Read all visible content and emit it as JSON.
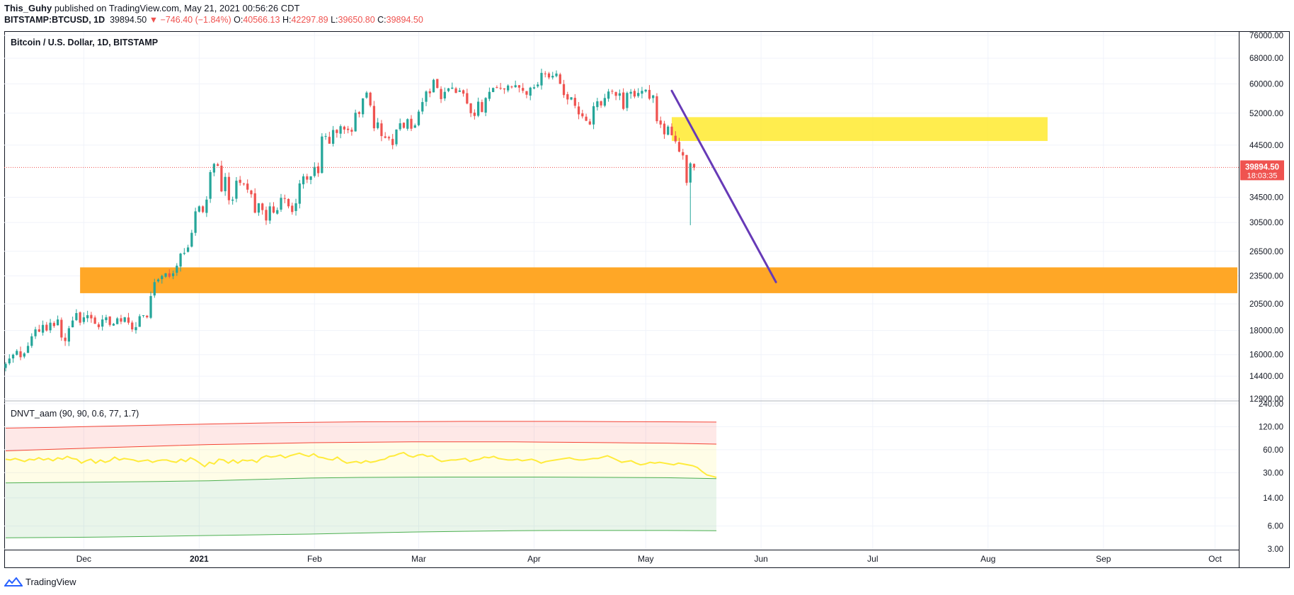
{
  "header": {
    "author": "This_Guhy",
    "published": "published on TradingView.com, May 21, 2021 00:56:26 CDT",
    "symbol": "BITSTAMP:BTCUSD, 1D",
    "last": "39894.50",
    "change": "▼ −746.40 (−1.84%)",
    "o_label": "O:",
    "o_val": "40566.13",
    "h_label": "H:",
    "h_val": "42297.89",
    "l_label": "L:",
    "l_val": "39650.80",
    "c_label": "C:",
    "c_val": "39894.50"
  },
  "footer": {
    "brand": "TradingView"
  },
  "colors": {
    "up": "#26a69a",
    "down": "#ef5350",
    "yellow_zone": "#ffeb3b",
    "orange_zone": "#ffa726",
    "trendline": "#673ab7",
    "indicator_line": "#ffeb3b"
  },
  "chart_data": [
    {
      "type": "candlestick",
      "title": "Bitcoin / U.S. Dollar, 1D, BITSTAMP",
      "scale": "log",
      "ylim": [
        12900,
        76000
      ],
      "y_ticks": [
        "76000.00",
        "68000.00",
        "60000.00",
        "52000.00",
        "44500.00",
        "39894.50",
        "34500.00",
        "30500.00",
        "26500.00",
        "23500.00",
        "20500.00",
        "18000.00",
        "16000.00",
        "14400.00",
        "12900.00"
      ],
      "price_ticks": [
        76000,
        68000,
        60000,
        52000,
        44500,
        34500,
        30500,
        26500,
        23500,
        20500,
        18000,
        16000,
        14400,
        12900
      ],
      "last_price": 39894.5,
      "last_price_label": "39894.50",
      "countdown": "18:03:35",
      "x_ticks": [
        "Dec",
        "2021",
        "Feb",
        "Mar",
        "Apr",
        "May",
        "Jun",
        "Jul",
        "Aug",
        "Sep",
        "Oct"
      ],
      "x_tick_dates": [
        "2020-12-01",
        "2021-01-01",
        "2021-02-01",
        "2021-03-01",
        "2021-04-01",
        "2021-05-01",
        "2021-06-01",
        "2021-07-01",
        "2021-08-01",
        "2021-09-01",
        "2021-10-01"
      ],
      "x_range": [
        "2020-11-10",
        "2021-10-07"
      ],
      "candles_first_date": "2020-11-10",
      "close_path": [
        15300,
        15700,
        16000,
        16300,
        15800,
        16100,
        16700,
        17500,
        18100,
        17900,
        18500,
        18000,
        18700,
        18400,
        19000,
        17400,
        17100,
        18200,
        18900,
        19600,
        18700,
        19200,
        19400,
        19100,
        18600,
        18300,
        19000,
        19200,
        18500,
        18600,
        19100,
        18800,
        19200,
        18700,
        18100,
        18300,
        19300,
        19400,
        19200,
        21300,
        22800,
        23100,
        23500,
        23800,
        23400,
        23800,
        24700,
        26200,
        26300,
        27000,
        29000,
        32200,
        33000,
        32100,
        34100,
        39000,
        40600,
        40200,
        35500,
        38100,
        34000,
        34100,
        37400,
        37000,
        36800,
        35800,
        35000,
        32000,
        33500,
        32400,
        30800,
        33000,
        32000,
        32400,
        34400,
        34300,
        33000,
        32100,
        33500,
        36900,
        38200,
        37600,
        38200,
        40000,
        38800,
        46400,
        46500,
        44800,
        47900,
        47200,
        48800,
        48000,
        47900,
        47500,
        52100,
        51800,
        55900,
        57500,
        54000,
        48300,
        49700,
        46500,
        46100,
        46000,
        44500,
        48000,
        49500,
        48400,
        50500,
        48200,
        49000,
        52400,
        54900,
        57800,
        57300,
        61200,
        58800,
        55700,
        57700,
        58700,
        58900,
        57400,
        58100,
        57200,
        54500,
        52000,
        51300,
        55000,
        52300,
        56000,
        57700,
        58800,
        58900,
        58800,
        58400,
        59500,
        59000,
        59600,
        58900,
        58000,
        56900,
        58900,
        59000,
        59800,
        63300,
        63100,
        61900,
        62400,
        63100,
        60000,
        56800,
        55600,
        56200,
        53900,
        51700,
        51200,
        50100,
        49200,
        53800,
        55100,
        54000,
        56000,
        57800,
        57800,
        56600,
        57300,
        53100,
        57400,
        57700,
        56400,
        57400,
        58000,
        58300,
        55800,
        56700,
        50000,
        49200,
        46900,
        48700,
        46700,
        45300,
        43100,
        42300,
        37000,
        40700,
        39894.5
      ],
      "zones": [
        {
          "name": "yellow-zone",
          "from": "2021-05-08",
          "to": "2021-08-17",
          "low": 45400,
          "high": 51000
        },
        {
          "name": "orange-zone",
          "from": "2020-11-30",
          "to": "2021-10-07",
          "low": 21600,
          "high": 24500
        }
      ],
      "trendline": {
        "from_date": "2021-05-08",
        "from_price": 58000,
        "to_date": "2021-06-05",
        "to_price": 22800
      }
    },
    {
      "type": "line",
      "title": "DNVT_aam (90, 90, 0.6, 77, 1.7)",
      "scale": "log",
      "ylim": [
        3,
        240
      ],
      "y_ticks": [
        "240.00",
        "120.00",
        "60.00",
        "30.00",
        "14.00",
        "6.00",
        "3.00"
      ],
      "y_tick_values": [
        240,
        120,
        60,
        30,
        14,
        6,
        3
      ],
      "x_start": "2020-11-10",
      "x_end": "2021-05-20",
      "series": [
        {
          "key": "upper_outer",
          "color": "#f44336",
          "values": [
            115,
            118,
            122,
            126,
            130,
            134,
            137,
            139,
            140,
            141,
            141,
            141,
            140,
            139,
            138
          ]
        },
        {
          "key": "upper_inner",
          "color": "#f44336",
          "values": [
            58,
            61,
            64,
            67,
            70,
            72,
            74,
            75,
            76,
            76,
            76,
            75,
            74,
            73,
            71
          ]
        },
        {
          "key": "oscillator",
          "color": "#ffeb3b",
          "values": [
            45,
            44,
            46,
            44,
            42,
            45,
            44,
            47,
            44,
            46,
            43,
            47,
            45,
            49,
            46,
            45,
            40,
            43,
            45,
            40,
            44,
            41,
            43,
            48,
            44,
            46,
            45,
            44,
            42,
            43,
            44,
            41,
            43,
            44,
            44,
            42,
            41,
            45,
            42,
            47,
            44,
            40,
            36,
            41,
            39,
            45,
            44,
            40,
            44,
            40,
            44,
            43,
            44,
            41,
            47,
            50,
            48,
            49,
            51,
            47,
            50,
            52,
            54,
            51,
            49,
            53,
            48,
            47,
            45,
            44,
            48,
            43,
            40,
            41,
            42,
            40,
            43,
            41,
            42,
            44,
            45,
            49,
            50,
            53,
            55,
            50,
            48,
            51,
            52,
            49,
            50,
            45,
            42,
            43,
            44,
            44,
            45,
            46,
            42,
            44,
            45,
            48,
            47,
            49,
            46,
            45,
            44,
            44,
            45,
            43,
            44,
            45,
            43,
            40,
            42,
            43,
            44,
            45,
            46,
            47,
            45,
            44,
            44,
            45,
            46,
            46,
            48,
            50,
            47,
            44,
            41,
            42,
            43,
            40,
            38,
            39,
            41,
            40,
            41,
            40,
            39,
            38,
            40,
            39,
            38,
            37,
            35,
            31,
            28,
            27,
            26
          ]
        },
        {
          "key": "lower_inner",
          "color": "#4caf50",
          "values": [
            22,
            22.3,
            22.6,
            23,
            23.5,
            24.5,
            25.5,
            26,
            26.2,
            26.3,
            26.3,
            26.2,
            26,
            25.8,
            25
          ]
        },
        {
          "key": "lower_outer",
          "color": "#4caf50",
          "values": [
            4.2,
            4.25,
            4.3,
            4.4,
            4.5,
            4.6,
            4.7,
            4.85,
            5,
            5.1,
            5.2,
            5.25,
            5.25,
            5.25,
            5.2
          ]
        }
      ]
    }
  ]
}
